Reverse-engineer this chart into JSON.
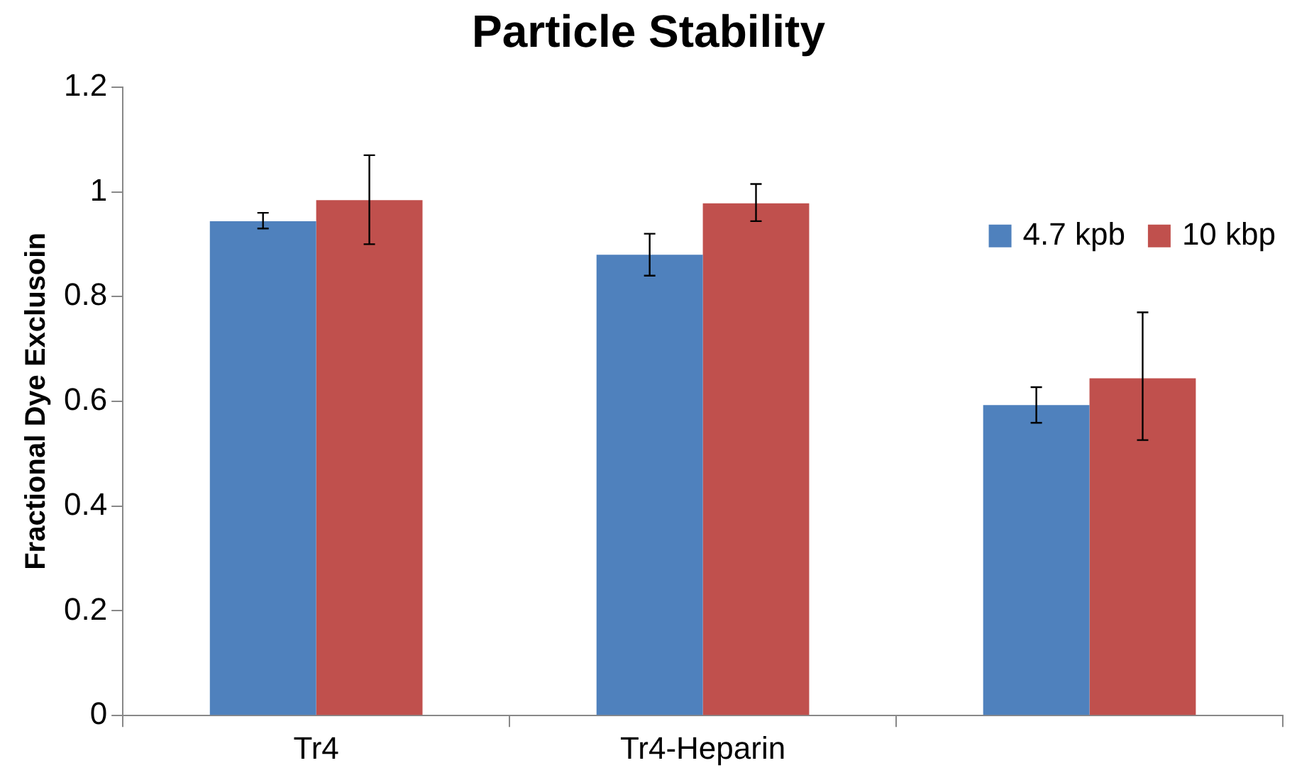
{
  "chart_data": {
    "type": "bar",
    "title": "Particle Stability",
    "ylabel": "Fractional Dye Exclusoin",
    "categories": [
      "Tr4",
      "Tr4-Heparin",
      null
    ],
    "series": [
      {
        "name": "4.7 kpb",
        "color": "#4f81bd",
        "values": [
          0.944,
          0.88,
          0.593
        ],
        "errors": [
          [
            0.93,
            0.96
          ],
          [
            0.84,
            0.92
          ],
          [
            0.559,
            0.627
          ]
        ]
      },
      {
        "name": "10 kbp",
        "color": "#c0504d",
        "values": [
          0.984,
          0.978,
          0.644
        ],
        "errors": [
          [
            0.9,
            1.07
          ],
          [
            0.944,
            1.015
          ],
          [
            0.526,
            0.77
          ]
        ]
      }
    ],
    "ylim": [
      0,
      1.2
    ],
    "yticks": [
      0,
      0.2,
      0.4,
      0.6,
      0.8,
      1,
      1.2
    ],
    "grid": false,
    "legend": "top right"
  }
}
